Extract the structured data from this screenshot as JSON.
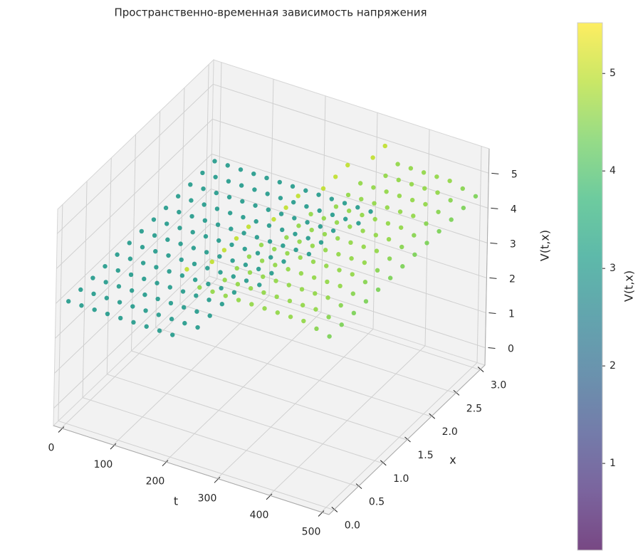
{
  "chart_data": {
    "type": "scatter3d",
    "title": "Пространственно-временная зависимость напряжения",
    "xlabel": "t",
    "ylabel": "x",
    "zlabel": "V(t,x)",
    "t": [
      0,
      25,
      50,
      75,
      100,
      125,
      150,
      175,
      200,
      225,
      250,
      275,
      300,
      325,
      350,
      375,
      400,
      425,
      450,
      475,
      500
    ],
    "x": [
      0,
      0.25,
      0.5,
      0.75,
      1,
      1.25,
      1.5,
      1.75,
      2,
      2.25,
      2.5,
      2.75,
      3
    ],
    "values": [
      [
        3,
        3,
        3,
        3,
        3,
        3,
        3,
        3,
        3,
        5,
        4.6,
        4.6,
        4.6,
        4.6,
        4.6,
        4.6,
        4.6,
        4.6,
        4.6,
        4.5,
        4.4
      ],
      [
        3,
        3,
        3,
        3,
        3,
        3,
        3,
        3,
        3,
        3,
        5,
        4.6,
        4.6,
        4.6,
        4.6,
        4.6,
        4.6,
        4.6,
        4.6,
        4.5,
        4.4
      ],
      [
        3,
        3,
        3,
        3,
        3,
        3,
        3,
        3,
        3,
        3,
        5,
        4.6,
        4.6,
        4.6,
        4.6,
        4.6,
        4.6,
        4.6,
        4.6,
        4.5,
        4.4
      ],
      [
        3,
        3,
        3,
        3,
        3,
        3,
        3,
        3,
        3,
        3,
        5,
        4.6,
        4.6,
        4.6,
        4.6,
        4.6,
        4.6,
        4.6,
        4.6,
        4.5,
        4.4
      ],
      [
        3,
        3,
        3,
        3,
        3,
        3,
        3,
        3,
        3,
        3,
        5,
        4.6,
        4.6,
        4.6,
        4.6,
        4.6,
        4.6,
        4.6,
        4.6,
        4.5,
        4.4
      ],
      [
        3,
        3,
        3,
        3,
        3,
        3,
        3,
        3,
        3,
        3,
        3,
        5,
        4.6,
        4.6,
        4.6,
        4.6,
        4.6,
        4.6,
        4.6,
        4.5,
        4.4
      ],
      [
        3,
        3,
        3,
        3,
        3,
        3,
        3,
        3,
        3,
        3,
        3,
        5,
        4.6,
        4.6,
        4.6,
        4.6,
        4.6,
        4.6,
        4.6,
        4.5,
        4.4
      ],
      [
        3,
        3,
        3,
        3,
        3,
        3,
        3,
        3,
        3,
        3,
        3,
        5,
        4.6,
        4.6,
        4.6,
        4.6,
        4.6,
        4.6,
        4.6,
        4.5,
        4.4
      ],
      [
        3,
        3,
        3,
        3,
        3,
        3,
        3,
        3,
        3,
        3,
        3,
        3,
        5,
        4.6,
        4.6,
        4.6,
        4.6,
        4.6,
        4.6,
        4.5,
        4.4
      ],
      [
        3,
        3,
        3,
        3,
        3,
        3,
        3,
        3,
        3,
        3,
        3,
        3,
        5,
        4.6,
        4.6,
        4.6,
        4.6,
        4.6,
        4.6,
        4.5,
        4.4
      ],
      [
        3,
        3,
        3,
        3,
        3,
        3,
        3,
        3,
        3,
        3,
        3,
        3,
        5,
        4.6,
        4.6,
        4.6,
        4.6,
        4.6,
        4.6,
        4.5,
        4.4
      ],
      [
        3,
        3,
        3,
        3,
        3,
        3,
        3,
        3,
        3,
        3,
        3,
        3,
        3,
        5,
        4.6,
        4.6,
        4.6,
        4.6,
        4.6,
        4.5,
        4.4
      ],
      [
        3,
        3,
        3,
        3,
        3,
        3,
        3,
        3,
        3,
        3,
        3,
        3,
        3,
        5,
        4.6,
        4.6,
        4.6,
        4.6,
        4.6,
        4.5,
        4.4
      ]
    ],
    "tlim": [
      -15,
      515
    ],
    "tticks": [
      0,
      100,
      200,
      300,
      400,
      500
    ],
    "xlim": [
      -0.1,
      3.1
    ],
    "xticks": [
      {
        "value": 0,
        "label": "0.0"
      },
      {
        "value": 0.5,
        "label": "0.5"
      },
      {
        "value": 1,
        "label": "1.0"
      },
      {
        "value": 1.5,
        "label": "1.5"
      },
      {
        "value": 2,
        "label": "2.0"
      },
      {
        "value": 2.5,
        "label": "2.5"
      },
      {
        "value": 3,
        "label": "3.0"
      }
    ],
    "zlim": [
      -0.5,
      5.7
    ],
    "zticks": [
      0,
      1,
      2,
      3,
      4,
      5
    ],
    "colormap": "viridis",
    "clim": [
      0.11,
      5.52
    ],
    "cticks": [
      1,
      2,
      3,
      4,
      5
    ],
    "clabel": "V(t,x)",
    "grid": true
  }
}
